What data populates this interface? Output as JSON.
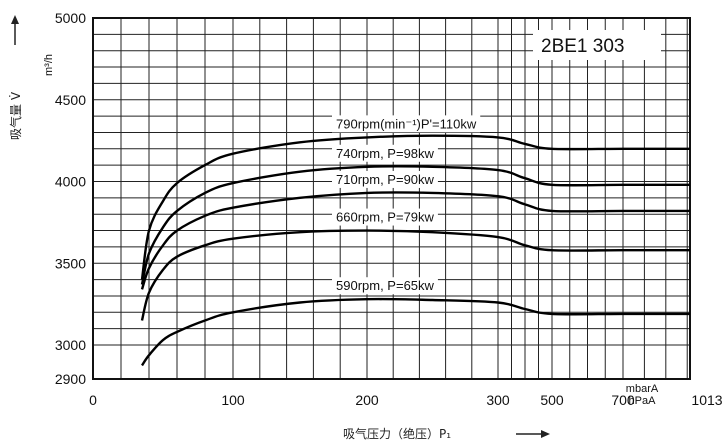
{
  "chart_data": {
    "type": "line",
    "model": "2BE1 303",
    "xlabel": "吸气压力（绝压）P₁",
    "ylabel": "吸气量 V̇",
    "yunit": "m³/h",
    "x_unit_top": "mbarA",
    "x_unit_bottom": "hPaA",
    "x_tick_labels": [
      "0",
      "100",
      "200",
      "300",
      "500",
      "700",
      "1013"
    ],
    "y_tick_labels": [
      "2900",
      "3000",
      "3500",
      "4000",
      "4500",
      "5000"
    ],
    "ylim": [
      2900,
      5000
    ],
    "grid": true,
    "series": [
      {
        "name": "790rpm(min⁻¹)P'=110kw",
        "x": [
          35,
          40,
          50,
          60,
          80,
          100,
          150,
          200,
          250,
          300,
          400,
          500,
          700,
          1013
        ],
        "y": [
          3400,
          3700,
          3880,
          3990,
          4100,
          4170,
          4240,
          4270,
          4280,
          4270,
          4230,
          4200,
          4200,
          4200
        ]
      },
      {
        "name": "740rpm, P=98kw",
        "x": [
          35,
          40,
          50,
          60,
          80,
          100,
          150,
          200,
          250,
          300,
          400,
          500,
          700,
          1013
        ],
        "y": [
          3370,
          3560,
          3720,
          3820,
          3930,
          3990,
          4060,
          4090,
          4090,
          4070,
          4020,
          3980,
          3980,
          3980
        ]
      },
      {
        "name": "710rpm, P=90kw",
        "x": [
          35,
          40,
          50,
          60,
          80,
          100,
          150,
          200,
          250,
          300,
          400,
          500,
          700,
          1013
        ],
        "y": [
          3340,
          3470,
          3610,
          3700,
          3790,
          3840,
          3900,
          3930,
          3930,
          3910,
          3860,
          3820,
          3820,
          3820
        ]
      },
      {
        "name": "660rpm, P=79kw",
        "x": [
          35,
          40,
          50,
          60,
          80,
          100,
          150,
          200,
          250,
          300,
          400,
          500,
          700,
          1013
        ],
        "y": [
          3150,
          3320,
          3460,
          3540,
          3610,
          3650,
          3690,
          3700,
          3690,
          3660,
          3610,
          3580,
          3580,
          3580
        ]
      },
      {
        "name": "590rpm, P=65kw",
        "x": [
          35,
          40,
          50,
          60,
          80,
          100,
          150,
          200,
          250,
          300,
          400,
          500,
          700,
          1013
        ],
        "y": [
          2940,
          2970,
          3030,
          3080,
          3150,
          3200,
          3260,
          3280,
          3275,
          3260,
          3220,
          3190,
          3190,
          3190
        ]
      }
    ]
  }
}
